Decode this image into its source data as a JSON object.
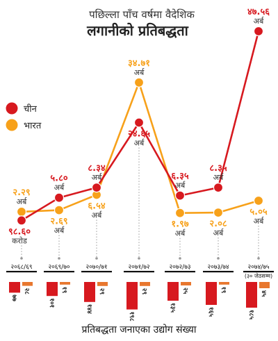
{
  "colors": {
    "china": "#d7191f",
    "india": "#f7a11a",
    "count_india": "#e8772e",
    "dotted": "#999999"
  },
  "chart_data": {
    "type": "line",
    "title_line1": "पछिल्ला पाँच वर्षमा वैदेशिक",
    "title_line2": "लगानीको प्रतिबद्धता",
    "categories": [
      "२०६८/६९",
      "२०६९/७०",
      "२०७०/७१",
      "२०७१/७२",
      "२०७२/७३",
      "२०७३/७४",
      "२०७४/७५"
    ],
    "category_note": "(३० जेठसम्म)",
    "ylim": [
      0,
      50
    ],
    "series": [
      {
        "name": "चीन",
        "color": "#d7191f",
        "values": [
          0.0986,
          5.8,
          8.34,
          24.65,
          6.35,
          8.35,
          47.56
        ],
        "labels": [
          "९८.६०",
          "५.८०",
          "८.३४",
          "२४.६५",
          "६.३५",
          "८.३५",
          "४७.५६"
        ],
        "units": [
          "करोड",
          "अर्ब",
          "अर्ब",
          "अर्ब",
          "अर्ब",
          "अर्ब",
          "अर्ब"
        ]
      },
      {
        "name": "भारत",
        "color": "#f7a11a",
        "values": [
          2.29,
          2.69,
          6.54,
          34.71,
          1.97,
          2.08,
          5.05
        ],
        "labels": [
          "२.२९",
          "२.६९",
          "६.५४",
          "३४.७१",
          "१.९७",
          "२.०८",
          "५.०५"
        ],
        "units": [
          "अर्ब",
          "अर्ब",
          "अर्ब",
          "अर्ब",
          "अर्ब",
          "अर्ब",
          "अर्ब"
        ]
      }
    ],
    "industry_count": {
      "title": "प्रतिबद्धता जनाएका उद्योग संख्या",
      "china": [
        77,
        101,
        144,
        198,
        135,
        165,
        185
      ],
      "india": [
        28,
        19,
        29,
        29,
        25,
        19,
        45
      ],
      "china_labels": [
        "७७",
        "१०१",
        "१४४",
        "१९८",
        "१३५",
        "१६५",
        "१८५"
      ],
      "india_labels": [
        "२८",
        "१९",
        "२९",
        "२९",
        "२५",
        "१९",
        "४५"
      ]
    }
  }
}
